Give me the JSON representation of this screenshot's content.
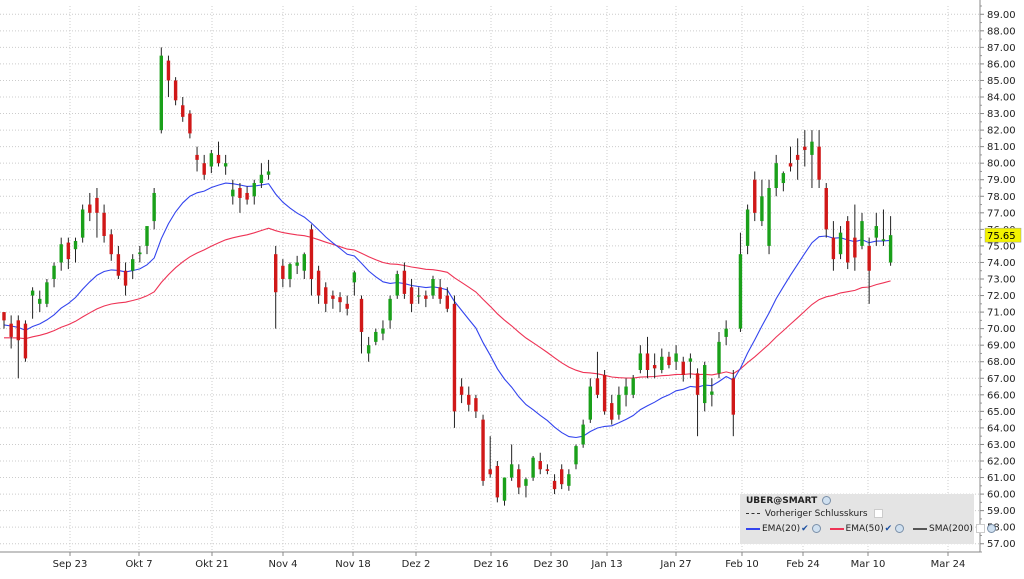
{
  "chart_data": {
    "type": "candlestick",
    "symbol_label": "UBER@SMART",
    "y_axis": {
      "min": 56.5,
      "max": 89.5,
      "ticks": [
        "57.00",
        "58.00",
        "59.00",
        "60.00",
        "61.00",
        "62.00",
        "63.00",
        "64.00",
        "65.00",
        "66.00",
        "67.00",
        "68.00",
        "69.00",
        "70.00",
        "71.00",
        "72.00",
        "73.00",
        "74.00",
        "75.00",
        "76.00",
        "77.00",
        "78.00",
        "79.00",
        "80.00",
        "81.00",
        "82.00",
        "83.00",
        "84.00",
        "85.00",
        "86.00",
        "87.00",
        "88.00",
        "89.00"
      ]
    },
    "x_axis": {
      "labels": [
        "Sep 23",
        "Okt 7",
        "Okt 21",
        "Nov 4",
        "Nov 18",
        "Dez 2",
        "Dez 16",
        "Dez 30",
        "Jan 13",
        "Jan 27",
        "Feb 10",
        "Feb 24",
        "Mar 10",
        "Mar 24"
      ]
    },
    "last_price_label": "75.65",
    "grid": true,
    "legend": {
      "placement": "bottom-right",
      "previous_close": "Vorheriger Schlusskurs",
      "ema20": "EMA(20)",
      "ema50": "EMA(50)",
      "sma200": "SMA(200)"
    },
    "colors": {
      "up": "#1aa01a",
      "down": "#d01818",
      "ema20": "#3344ee",
      "ema50": "#ee3355",
      "sma200": "#555555",
      "grid": "#cccccc",
      "last_price_bg": "#f2f200"
    },
    "candles": [
      {
        "date": "Sep 16",
        "o": 71.0,
        "h": 71.0,
        "l": 70.0,
        "c": 70.5
      },
      {
        "date": "Sep 17",
        "o": 70.3,
        "h": 70.8,
        "l": 68.8,
        "c": 69.5
      },
      {
        "date": "Sep 18",
        "o": 70.5,
        "h": 70.8,
        "l": 67.0,
        "c": 69.3
      },
      {
        "date": "Sep 19",
        "o": 70.3,
        "h": 70.5,
        "l": 68.0,
        "c": 68.2
      },
      {
        "date": "Sep 20",
        "o": 72.0,
        "h": 72.5,
        "l": 70.6,
        "c": 72.3
      },
      {
        "date": "Sep 23",
        "o": 71.5,
        "h": 72.3,
        "l": 71.0,
        "c": 71.8
      },
      {
        "date": "Sep 24",
        "o": 71.5,
        "h": 73.0,
        "l": 71.3,
        "c": 72.8
      },
      {
        "date": "Sep 25",
        "o": 73.0,
        "h": 74.0,
        "l": 72.5,
        "c": 73.8
      },
      {
        "date": "Sep 26",
        "o": 74.0,
        "h": 75.5,
        "l": 73.5,
        "c": 75.1
      },
      {
        "date": "Sep 27",
        "o": 75.2,
        "h": 75.5,
        "l": 73.6,
        "c": 74.2
      },
      {
        "date": "Sep 30",
        "o": 74.8,
        "h": 75.5,
        "l": 74.0,
        "c": 75.3
      },
      {
        "date": "Okt 1",
        "o": 75.5,
        "h": 77.5,
        "l": 75.2,
        "c": 77.2
      },
      {
        "date": "Okt 2",
        "o": 77.5,
        "h": 78.2,
        "l": 76.5,
        "c": 77.0
      },
      {
        "date": "Okt 3",
        "o": 77.9,
        "h": 78.5,
        "l": 75.5,
        "c": 77.0
      },
      {
        "date": "Okt 4",
        "o": 77.0,
        "h": 77.5,
        "l": 75.2,
        "c": 75.6
      },
      {
        "date": "Okt 7",
        "o": 75.7,
        "h": 76.0,
        "l": 74.1,
        "c": 74.5
      },
      {
        "date": "Okt 8",
        "o": 74.5,
        "h": 75.0,
        "l": 73.0,
        "c": 73.2
      },
      {
        "date": "Okt 9",
        "o": 73.5,
        "h": 74.0,
        "l": 72.0,
        "c": 72.6
      },
      {
        "date": "Okt 10",
        "o": 73.5,
        "h": 74.5,
        "l": 73.0,
        "c": 74.2
      },
      {
        "date": "Okt 11",
        "o": 74.5,
        "h": 75.0,
        "l": 74.0,
        "c": 74.6
      },
      {
        "date": "Okt 14",
        "o": 75.0,
        "h": 76.0,
        "l": 74.5,
        "c": 76.2
      },
      {
        "date": "Okt 15",
        "o": 76.5,
        "h": 78.5,
        "l": 76.0,
        "c": 78.2
      },
      {
        "date": "Okt 16",
        "o": 82.0,
        "h": 87.0,
        "l": 81.8,
        "c": 86.5
      },
      {
        "date": "Okt 17",
        "o": 86.2,
        "h": 86.5,
        "l": 84.0,
        "c": 85.0
      },
      {
        "date": "Okt 18",
        "o": 85.0,
        "h": 85.2,
        "l": 83.5,
        "c": 83.8
      },
      {
        "date": "Okt 21",
        "o": 83.5,
        "h": 84.0,
        "l": 82.5,
        "c": 82.8
      },
      {
        "date": "Okt 22",
        "o": 83.0,
        "h": 83.2,
        "l": 81.5,
        "c": 81.8
      },
      {
        "date": "Okt 23",
        "o": 80.5,
        "h": 81.0,
        "l": 79.5,
        "c": 80.2
      },
      {
        "date": "Okt 24",
        "o": 80.0,
        "h": 80.5,
        "l": 79.0,
        "c": 79.3
      },
      {
        "date": "Okt 25",
        "o": 79.8,
        "h": 80.8,
        "l": 79.4,
        "c": 80.6
      },
      {
        "date": "Okt 28",
        "o": 80.5,
        "h": 81.3,
        "l": 79.8,
        "c": 80.0
      },
      {
        "date": "Okt 29",
        "o": 79.8,
        "h": 80.5,
        "l": 79.3,
        "c": 80.0
      },
      {
        "date": "Okt 30",
        "o": 78.0,
        "h": 79.0,
        "l": 77.5,
        "c": 78.4
      },
      {
        "date": "Okt 31",
        "o": 78.5,
        "h": 78.8,
        "l": 77.0,
        "c": 77.9
      },
      {
        "date": "Nov 1",
        "o": 78.2,
        "h": 78.6,
        "l": 77.5,
        "c": 77.8
      },
      {
        "date": "Nov 4",
        "o": 78.0,
        "h": 79.0,
        "l": 77.5,
        "c": 78.8
      },
      {
        "date": "Nov 5",
        "o": 78.8,
        "h": 80.0,
        "l": 78.5,
        "c": 79.3
      },
      {
        "date": "Nov 6",
        "o": 79.3,
        "h": 80.2,
        "l": 79.0,
        "c": 79.5
      },
      {
        "date": "Nov 7",
        "o": 74.5,
        "h": 75.0,
        "l": 70.0,
        "c": 72.2
      },
      {
        "date": "Nov 8",
        "o": 73.8,
        "h": 74.2,
        "l": 72.5,
        "c": 73.0
      },
      {
        "date": "Nov 11",
        "o": 73.0,
        "h": 74.0,
        "l": 72.5,
        "c": 73.9
      },
      {
        "date": "Nov 12",
        "o": 73.8,
        "h": 74.4,
        "l": 73.3,
        "c": 74.0
      },
      {
        "date": "Nov 13",
        "o": 73.5,
        "h": 74.6,
        "l": 73.0,
        "c": 74.5
      },
      {
        "date": "Nov 14",
        "o": 76.0,
        "h": 76.3,
        "l": 72.0,
        "c": 73.0
      },
      {
        "date": "Nov 15",
        "o": 73.5,
        "h": 73.8,
        "l": 71.5,
        "c": 72.0
      },
      {
        "date": "Nov 18",
        "o": 72.5,
        "h": 72.8,
        "l": 71.0,
        "c": 71.5
      },
      {
        "date": "Nov 19",
        "o": 72.0,
        "h": 72.3,
        "l": 71.2,
        "c": 71.8
      },
      {
        "date": "Nov 20",
        "o": 71.9,
        "h": 72.2,
        "l": 71.0,
        "c": 71.6
      },
      {
        "date": "Nov 21",
        "o": 71.5,
        "h": 72.0,
        "l": 70.8,
        "c": 71.2
      },
      {
        "date": "Nov 22",
        "o": 72.8,
        "h": 73.5,
        "l": 72.0,
        "c": 73.4
      },
      {
        "date": "Nov 25",
        "o": 71.8,
        "h": 72.0,
        "l": 68.5,
        "c": 69.8
      },
      {
        "date": "Nov 26",
        "o": 68.5,
        "h": 69.5,
        "l": 68.0,
        "c": 69.0
      },
      {
        "date": "Nov 27",
        "o": 69.2,
        "h": 70.0,
        "l": 69.0,
        "c": 69.8
      },
      {
        "date": "Nov 29",
        "o": 69.7,
        "h": 70.5,
        "l": 69.3,
        "c": 70.0
      },
      {
        "date": "Dez 2",
        "o": 70.5,
        "h": 72.0,
        "l": 70.0,
        "c": 71.8
      },
      {
        "date": "Dez 3",
        "o": 72.0,
        "h": 73.5,
        "l": 71.8,
        "c": 73.3
      },
      {
        "date": "Dez 4",
        "o": 73.5,
        "h": 74.0,
        "l": 71.8,
        "c": 72.1
      },
      {
        "date": "Dez 5",
        "o": 72.5,
        "h": 73.0,
        "l": 71.0,
        "c": 71.5
      },
      {
        "date": "Dez 6",
        "o": 72.0,
        "h": 72.5,
        "l": 71.5,
        "c": 72.0
      },
      {
        "date": "Dez 9",
        "o": 72.0,
        "h": 72.3,
        "l": 71.3,
        "c": 71.8
      },
      {
        "date": "Dez 10",
        "o": 72.0,
        "h": 73.2,
        "l": 71.8,
        "c": 73.0
      },
      {
        "date": "Dez 11",
        "o": 72.5,
        "h": 73.0,
        "l": 71.5,
        "c": 71.8
      },
      {
        "date": "Dez 12",
        "o": 72.0,
        "h": 72.5,
        "l": 71.0,
        "c": 71.2
      },
      {
        "date": "Dez 13",
        "o": 71.5,
        "h": 72.0,
        "l": 64.0,
        "c": 65.0
      },
      {
        "date": "Dez 16",
        "o": 66.5,
        "h": 67.0,
        "l": 65.5,
        "c": 66.0
      },
      {
        "date": "Dez 17",
        "o": 66.0,
        "h": 66.5,
        "l": 65.0,
        "c": 65.4
      },
      {
        "date": "Dez 18",
        "o": 65.8,
        "h": 66.0,
        "l": 64.6,
        "c": 65.0
      },
      {
        "date": "Dez 19",
        "o": 64.5,
        "h": 64.8,
        "l": 60.5,
        "c": 60.8
      },
      {
        "date": "Dez 20",
        "o": 61.5,
        "h": 63.5,
        "l": 61.0,
        "c": 61.2
      },
      {
        "date": "Dez 23",
        "o": 61.7,
        "h": 62.0,
        "l": 59.5,
        "c": 59.8
      },
      {
        "date": "Dez 24",
        "o": 59.6,
        "h": 61.0,
        "l": 59.3,
        "c": 61.0
      },
      {
        "date": "Dez 26",
        "o": 61.0,
        "h": 63.0,
        "l": 60.8,
        "c": 61.8
      },
      {
        "date": "Dez 27",
        "o": 61.5,
        "h": 61.8,
        "l": 60.0,
        "c": 60.4
      },
      {
        "date": "Dez 30",
        "o": 60.5,
        "h": 61.0,
        "l": 59.8,
        "c": 60.9
      },
      {
        "date": "Dez 31",
        "o": 61.0,
        "h": 62.3,
        "l": 60.8,
        "c": 62.2
      },
      {
        "date": "Jan 2",
        "o": 62.0,
        "h": 62.5,
        "l": 61.2,
        "c": 61.5
      },
      {
        "date": "Jan 3",
        "o": 61.5,
        "h": 61.8,
        "l": 61.2,
        "c": 61.4
      },
      {
        "date": "Jan 6",
        "o": 60.8,
        "h": 61.2,
        "l": 60.0,
        "c": 60.3
      },
      {
        "date": "Jan 7",
        "o": 61.5,
        "h": 61.8,
        "l": 60.3,
        "c": 60.6
      },
      {
        "date": "Jan 8",
        "o": 60.5,
        "h": 61.5,
        "l": 60.2,
        "c": 61.2
      },
      {
        "date": "Jan 10",
        "o": 61.8,
        "h": 63.0,
        "l": 61.5,
        "c": 62.9
      },
      {
        "date": "Jan 13",
        "o": 63.0,
        "h": 64.5,
        "l": 62.8,
        "c": 64.2
      },
      {
        "date": "Jan 14",
        "o": 64.5,
        "h": 67.0,
        "l": 64.3,
        "c": 66.5
      },
      {
        "date": "Jan 15",
        "o": 67.0,
        "h": 68.6,
        "l": 65.8,
        "c": 66.0
      },
      {
        "date": "Jan 16",
        "o": 67.2,
        "h": 67.5,
        "l": 64.8,
        "c": 65.0
      },
      {
        "date": "Jan 17",
        "o": 65.5,
        "h": 66.0,
        "l": 64.2,
        "c": 64.5
      },
      {
        "date": "Jan 21",
        "o": 64.8,
        "h": 66.5,
        "l": 64.5,
        "c": 66.0
      },
      {
        "date": "Jan 22",
        "o": 66.0,
        "h": 67.0,
        "l": 65.3,
        "c": 66.5
      },
      {
        "date": "Jan 23",
        "o": 66.0,
        "h": 67.2,
        "l": 65.8,
        "c": 67.0
      },
      {
        "date": "Jan 24",
        "o": 67.5,
        "h": 69.0,
        "l": 67.3,
        "c": 68.5
      },
      {
        "date": "Jan 27",
        "o": 68.5,
        "h": 69.5,
        "l": 67.0,
        "c": 67.5
      },
      {
        "date": "Jan 28",
        "o": 67.8,
        "h": 68.5,
        "l": 67.0,
        "c": 67.6
      },
      {
        "date": "Jan 29",
        "o": 67.5,
        "h": 68.8,
        "l": 67.3,
        "c": 68.3
      },
      {
        "date": "Jan 30",
        "o": 68.3,
        "h": 68.6,
        "l": 67.6,
        "c": 67.8
      },
      {
        "date": "Jan 31",
        "o": 68.0,
        "h": 69.0,
        "l": 67.5,
        "c": 68.5
      },
      {
        "date": "Feb 3",
        "o": 68.0,
        "h": 68.3,
        "l": 66.8,
        "c": 67.2
      },
      {
        "date": "Feb 4",
        "o": 68.0,
        "h": 68.5,
        "l": 67.0,
        "c": 68.2
      },
      {
        "date": "Feb 5",
        "o": 67.3,
        "h": 67.6,
        "l": 63.5,
        "c": 66.0
      },
      {
        "date": "Feb 6",
        "o": 65.5,
        "h": 68.0,
        "l": 65.0,
        "c": 67.8
      },
      {
        "date": "Feb 7",
        "o": 66.0,
        "h": 67.0,
        "l": 65.3,
        "c": 66.2
      },
      {
        "date": "Feb 10",
        "o": 67.3,
        "h": 69.8,
        "l": 67.0,
        "c": 69.2
      },
      {
        "date": "Feb 11",
        "o": 69.5,
        "h": 70.5,
        "l": 69.0,
        "c": 70.0
      },
      {
        "date": "Feb 12",
        "o": 67.0,
        "h": 67.5,
        "l": 63.5,
        "c": 64.8
      },
      {
        "date": "Feb 13",
        "o": 70.0,
        "h": 75.8,
        "l": 69.8,
        "c": 74.5
      },
      {
        "date": "Feb 14",
        "o": 75.0,
        "h": 77.5,
        "l": 74.5,
        "c": 77.2
      },
      {
        "date": "Feb 18",
        "o": 79.0,
        "h": 79.5,
        "l": 76.5,
        "c": 77.0
      },
      {
        "date": "Feb 19",
        "o": 76.5,
        "h": 79.0,
        "l": 76.2,
        "c": 78.0
      },
      {
        "date": "Feb 20",
        "o": 75.0,
        "h": 79.0,
        "l": 74.5,
        "c": 78.5
      },
      {
        "date": "Feb 21",
        "o": 78.5,
        "h": 80.5,
        "l": 78.0,
        "c": 80.0
      },
      {
        "date": "Feb 24",
        "o": 78.8,
        "h": 79.5,
        "l": 78.3,
        "c": 79.4
      },
      {
        "date": "Feb 25",
        "o": 80.0,
        "h": 81.0,
        "l": 79.5,
        "c": 79.8
      },
      {
        "date": "Feb 26",
        "o": 80.5,
        "h": 81.5,
        "l": 79.0,
        "c": 80.2
      },
      {
        "date": "Feb 27",
        "o": 81.0,
        "h": 82.0,
        "l": 79.8,
        "c": 80.8
      },
      {
        "date": "Feb 28",
        "o": 80.5,
        "h": 82.0,
        "l": 78.5,
        "c": 81.3
      },
      {
        "date": "Mar 3",
        "o": 81.0,
        "h": 82.0,
        "l": 78.5,
        "c": 79.0
      },
      {
        "date": "Mar 4",
        "o": 78.5,
        "h": 78.8,
        "l": 75.5,
        "c": 76.0
      },
      {
        "date": "Mar 5",
        "o": 75.5,
        "h": 76.5,
        "l": 73.5,
        "c": 74.2
      },
      {
        "date": "Mar 6",
        "o": 74.5,
        "h": 76.2,
        "l": 74.2,
        "c": 75.8
      },
      {
        "date": "Mar 7",
        "o": 76.5,
        "h": 76.8,
        "l": 73.6,
        "c": 74.0
      },
      {
        "date": "Mar 10",
        "o": 75.5,
        "h": 77.5,
        "l": 73.5,
        "c": 74.3
      },
      {
        "date": "Mar 11",
        "o": 75.0,
        "h": 77.0,
        "l": 74.8,
        "c": 76.5
      },
      {
        "date": "Mar 12",
        "o": 75.0,
        "h": 75.5,
        "l": 71.5,
        "c": 73.5
      },
      {
        "date": "Mar 13",
        "o": 75.5,
        "h": 77.0,
        "l": 75.0,
        "c": 76.2
      },
      {
        "date": "Mar 14",
        "o": 75.3,
        "h": 77.2,
        "l": 75.0,
        "c": 75.4
      },
      {
        "date": "Mar 17",
        "o": 74.0,
        "h": 76.8,
        "l": 73.8,
        "c": 75.65
      }
    ]
  }
}
